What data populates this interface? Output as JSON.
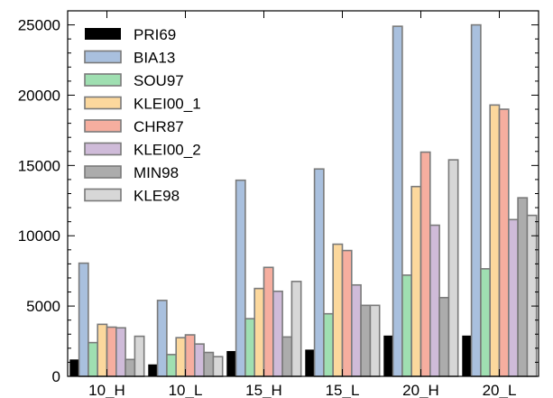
{
  "chart_data": {
    "type": "bar",
    "categories": [
      "10_H",
      "10_L",
      "15_H",
      "15_L",
      "20_H",
      "20_L"
    ],
    "ylim": [
      0,
      26000
    ],
    "yticks": [
      0,
      5000,
      10000,
      15000,
      20000,
      25000
    ],
    "ytick_labels": [
      "0",
      "5000",
      "10000",
      "15000",
      "20000",
      "25000"
    ],
    "grid": false,
    "legend_position": "top-left",
    "series": [
      {
        "name": "PRI69",
        "color": "#000000",
        "values": [
          1200,
          850,
          1800,
          1900,
          2900,
          2900
        ]
      },
      {
        "name": "BIA13",
        "color": "#9ab5d8",
        "values": [
          8050,
          5400,
          13950,
          14750,
          24900,
          25000
        ]
      },
      {
        "name": "SOU97",
        "color": "#8ed9a3",
        "values": [
          2400,
          1550,
          4100,
          4450,
          7200,
          7650
        ]
      },
      {
        "name": "KLEI00_1",
        "color": "#fbd18c",
        "values": [
          3700,
          2750,
          6250,
          9400,
          13500,
          19300
        ]
      },
      {
        "name": "CHR87",
        "color": "#f4a08e",
        "values": [
          3500,
          2950,
          7750,
          8950,
          15950,
          19000
        ]
      },
      {
        "name": "KLEI00_2",
        "color": "#c7afd2",
        "values": [
          3450,
          2300,
          6050,
          6500,
          10750,
          11150
        ]
      },
      {
        "name": "MIN98",
        "color": "#9d9d9d",
        "values": [
          1200,
          1700,
          2800,
          5050,
          5600,
          12700
        ]
      },
      {
        "name": "KLE98",
        "color": "#d0d0d0",
        "values": [
          2850,
          1400,
          6750,
          5050,
          15400,
          11450
        ]
      }
    ]
  }
}
